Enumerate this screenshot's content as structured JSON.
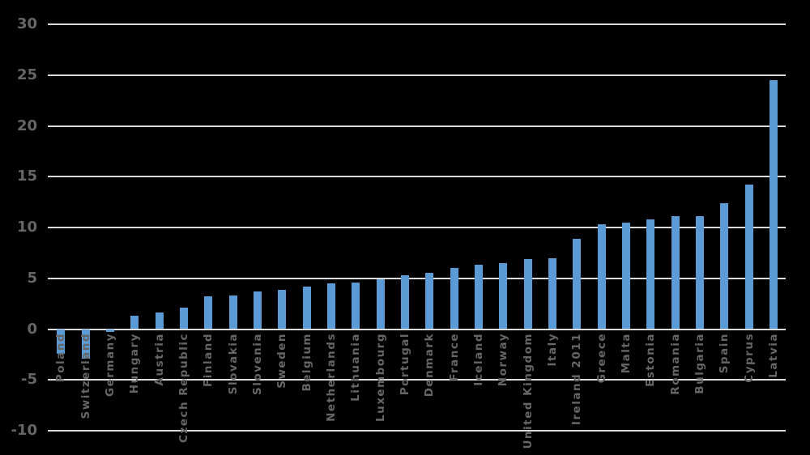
{
  "chart_data": {
    "type": "bar",
    "categories": [
      "Poland",
      "Switzerland",
      "Germany",
      "Hungary",
      "Austria",
      "Czech Republic",
      "Finland",
      "Slovakia",
      "Slovenia",
      "Sweden",
      "Belgium",
      "Netherlands",
      "Lithuania",
      "Luxembourg",
      "Portugal",
      "Denmark",
      "France",
      "Iceland",
      "Norway",
      "United Kingdom",
      "Italy",
      "Ireland 2011",
      "Greece",
      "Malta",
      "Estonia",
      "Romania",
      "Bulgaria",
      "Spain",
      "Cyprus",
      "Latvia"
    ],
    "values": [
      -2.4,
      -2.9,
      -0.3,
      1.3,
      1.6,
      2.1,
      3.2,
      3.3,
      3.7,
      3.9,
      4.2,
      4.5,
      4.6,
      4.9,
      5.3,
      5.5,
      6.0,
      6.3,
      6.5,
      6.9,
      7.0,
      8.9,
      10.3,
      10.5,
      10.8,
      11.1,
      11.1,
      12.4,
      14.2,
      24.5
    ],
    "y_ticks": [
      30,
      25,
      20,
      15,
      10,
      5,
      0,
      -5,
      -10
    ],
    "ylim": [
      -10,
      30
    ],
    "grid": true,
    "legend": false
  },
  "colors": {
    "background": "#000000",
    "bar": "#5B9BD5",
    "gridline": "#DCDCDC",
    "axis_text": "#666666"
  }
}
